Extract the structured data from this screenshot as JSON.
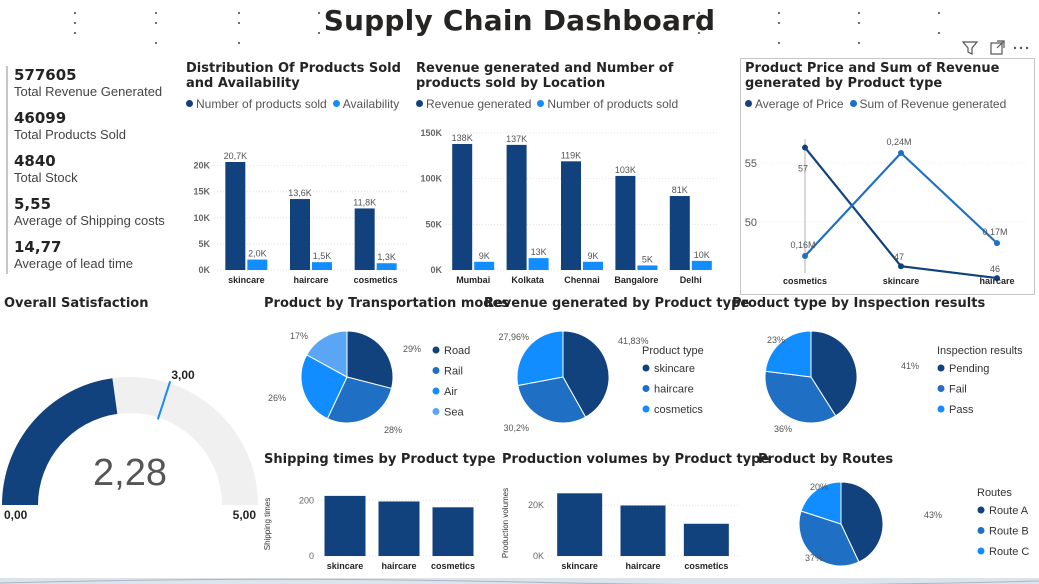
{
  "title": "Supply Chain Dashboard",
  "colors": {
    "dark": "#12427d",
    "mid": "#1f6fc5",
    "light": "#118dff",
    "pale": "#5aa6f5",
    "gauge_track": "#f0f0f0"
  },
  "header_icons": [
    "filter-icon",
    "focus-mode-icon",
    "more-options-icon"
  ],
  "kpis": [
    {
      "value": "577605",
      "label": "Total Revenue Generated"
    },
    {
      "value": "46099",
      "label": "Total Products Sold"
    },
    {
      "value": "4840",
      "label": "Total Stock"
    },
    {
      "value": "5,55",
      "label": "Average of Shipping costs"
    },
    {
      "value": "14,77",
      "label": "Average of lead time"
    }
  ],
  "chart_data": [
    {
      "id": "sold_availability",
      "type": "bar",
      "title": "Distribution Of Products Sold and Availability",
      "categories": [
        "skincare",
        "haircare",
        "cosmetics"
      ],
      "series": [
        {
          "name": "Number of products sold",
          "values": [
            20700,
            13600,
            11800
          ],
          "labels": [
            "20,7K",
            "13,6K",
            "11,8K"
          ]
        },
        {
          "name": "Availability",
          "values": [
            2000,
            1500,
            1300
          ],
          "labels": [
            "2,0K",
            "1,5K",
            "1,3K"
          ]
        }
      ],
      "yticks": [
        "0K",
        "5K",
        "10K",
        "15K",
        "20K"
      ],
      "ylim": [
        0,
        23000
      ]
    },
    {
      "id": "revenue_location",
      "type": "bar",
      "title": "Revenue generated and Number of products sold by Location",
      "categories": [
        "Mumbai",
        "Kolkata",
        "Chennai",
        "Bangalore",
        "Delhi"
      ],
      "series": [
        {
          "name": "Revenue generated",
          "values": [
            138000,
            137000,
            119000,
            103000,
            81000
          ],
          "labels": [
            "138K",
            "137K",
            "119K",
            "103K",
            "81K"
          ]
        },
        {
          "name": "Number of products sold",
          "values": [
            9000,
            13000,
            9000,
            5000,
            10000
          ],
          "labels": [
            "9K",
            "13K",
            "9K",
            "5K",
            "10K"
          ]
        }
      ],
      "yticks": [
        "0K",
        "50K",
        "100K",
        "150K"
      ],
      "ylim": [
        0,
        150000
      ]
    },
    {
      "id": "price_revenue",
      "type": "line",
      "title": "Product Price and Sum of Revenue generated by Product type",
      "categories": [
        "cosmetics",
        "skincare",
        "haircare"
      ],
      "series": [
        {
          "name": "Average of Price",
          "values": [
            57,
            47,
            46
          ],
          "labels": [
            "57",
            "47",
            "46"
          ]
        },
        {
          "name": "Sum of Revenue generated",
          "values": [
            0.16,
            0.24,
            0.17
          ],
          "labels": [
            "0,16M",
            "0,24M",
            "0,17M"
          ]
        }
      ],
      "yticks": [
        "50",
        "55"
      ]
    },
    {
      "id": "satisfaction",
      "type": "gauge",
      "title": "Overall Satisfaction",
      "value": 2.28,
      "value_label": "2,28",
      "min_label": "0,00",
      "max_label": "5,00",
      "target_label": "3,00",
      "min": 0,
      "max": 5,
      "target": 3
    },
    {
      "id": "transport",
      "type": "pie",
      "title": "Product by Transportation modes",
      "legend_title": "",
      "labels": [
        "Road",
        "Rail",
        "Air",
        "Sea"
      ],
      "values": [
        29,
        28,
        26,
        17
      ],
      "value_labels": [
        "29%",
        "28%",
        "26%",
        "17%"
      ]
    },
    {
      "id": "revenue_type",
      "type": "pie",
      "title": "Revenue generated by Product type",
      "legend_title": "Product type",
      "labels": [
        "skincare",
        "haircare",
        "cosmetics"
      ],
      "values": [
        41.83,
        30.2,
        27.96
      ],
      "value_labels": [
        "41,83%",
        "30,2%",
        "27,96%"
      ]
    },
    {
      "id": "inspection",
      "type": "pie",
      "title": "Product type by Inspection results",
      "legend_title": "Inspection results",
      "labels": [
        "Pending",
        "Fail",
        "Pass"
      ],
      "values": [
        41,
        36,
        23
      ],
      "value_labels": [
        "41%",
        "36%",
        "23%"
      ]
    },
    {
      "id": "shipping_times",
      "type": "bar",
      "title": "Shipping times by Product type",
      "ylabel": "Shipping times",
      "categories": [
        "skincare",
        "haircare",
        "cosmetics"
      ],
      "values": [
        216,
        196,
        175
      ],
      "yticks": [
        "0",
        "200"
      ],
      "ylim": [
        0,
        230
      ]
    },
    {
      "id": "production_volumes",
      "type": "bar",
      "title": "Production volumes by Product type",
      "ylabel": "Production volumes",
      "categories": [
        "skincare",
        "haircare",
        "cosmetics"
      ],
      "values": [
        24700,
        19900,
        12700
      ],
      "yticks": [
        "0K",
        "20K"
      ],
      "ylim": [
        0,
        26000
      ]
    },
    {
      "id": "routes",
      "type": "pie",
      "title": "Product by Routes",
      "legend_title": "Routes",
      "labels": [
        "Route A",
        "Route B",
        "Route C"
      ],
      "values": [
        43,
        37,
        20
      ],
      "value_labels": [
        "43%",
        "37%",
        "20%"
      ]
    }
  ]
}
